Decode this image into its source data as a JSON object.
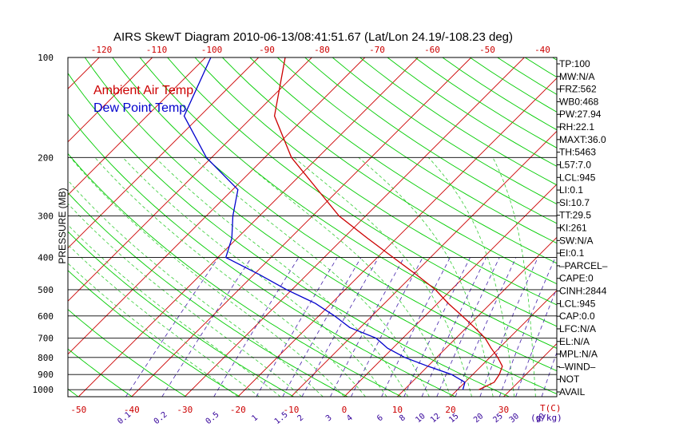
{
  "chart_data": {
    "type": "line",
    "title": "AIRS SkewT Diagram 2010-06-13/08:41:51.67 (Lat/Lon 24.19/-108.23 deg)",
    "ylabel": "PRESSURE (MB)",
    "xlabel": "T(C)",
    "mixing_ratio_unit": "(g/kg)",
    "y_scale": "log",
    "ylim": [
      1050,
      100
    ],
    "xlim_bottom": [
      -52,
      40
    ],
    "pressure_ticks": [
      "100",
      "200",
      "300",
      "400",
      "500",
      "600",
      "700",
      "800",
      "900",
      "1000"
    ],
    "bottom_temp_ticks": [
      "-50",
      "-40",
      "-30",
      "-20",
      "-10",
      "0",
      "10",
      "20",
      "30"
    ],
    "top_temp_ticks": [
      "-120",
      "-110",
      "-100",
      "-90",
      "-80",
      "-70",
      "-60",
      "-50",
      "-40"
    ],
    "mixing_ratio_labels": [
      "0.1",
      "0.2",
      "0.5",
      "1",
      "1.5",
      "2",
      "3",
      "4",
      "6",
      "8",
      "10",
      "12",
      "15",
      "20",
      "25",
      "30",
      "40"
    ],
    "legend": {
      "position": "top-left"
    },
    "series": [
      {
        "name": "Ambient Air Temp",
        "color": "#cc0000",
        "p": [
          100,
          150,
          200,
          250,
          300,
          350,
          400,
          450,
          500,
          550,
          600,
          650,
          700,
          750,
          800,
          850,
          900,
          950,
          1000
        ],
        "t": [
          -75,
          -66,
          -55,
          -44,
          -35,
          -25.5,
          -17,
          -9.5,
          -3,
          2,
          7,
          11.5,
          15.5,
          18.5,
          21.5,
          24,
          25,
          25.5,
          24
        ]
      },
      {
        "name": "Dew Point Temp",
        "color": "#0000cc",
        "p": [
          100,
          150,
          200,
          250,
          300,
          350,
          400,
          450,
          500,
          550,
          600,
          650,
          700,
          750,
          800,
          850,
          900,
          950,
          1000
        ],
        "t": [
          -89,
          -83,
          -71,
          -59,
          -55,
          -51,
          -48.5,
          -39,
          -31,
          -23,
          -17,
          -12,
          -5,
          -1,
          4,
          10,
          16,
          20,
          21
        ]
      }
    ],
    "indices": [
      "TP:100",
      "MW:N/A",
      "FRZ:562",
      "WB0:468",
      "PW:27.94",
      "RH:22.1",
      "MAXT:36.0",
      "TH:5463",
      "L57:7.0",
      "LCL:945",
      "LI:0.1",
      "SI:10.7",
      "TT:29.5",
      "KI:261",
      "SW:N/A",
      "EI:0.1",
      "–PARCEL–",
      "CAPE:0",
      "CINH:2844",
      "LCL:945",
      "CAP:0.0",
      "LFC:N/A",
      "EL:N/A",
      "MPL:N/A",
      "–WIND–",
      "NOT",
      "AVAIL"
    ],
    "colors": {
      "isotherm": "#cc0000",
      "dry_adiabat": "#00cc00",
      "moist_adiabat": "#33cc33",
      "mixing_ratio": "#4422aa",
      "isobar": "#000000",
      "axis_label": "#cc0000",
      "mixing_label": "#330099"
    }
  }
}
